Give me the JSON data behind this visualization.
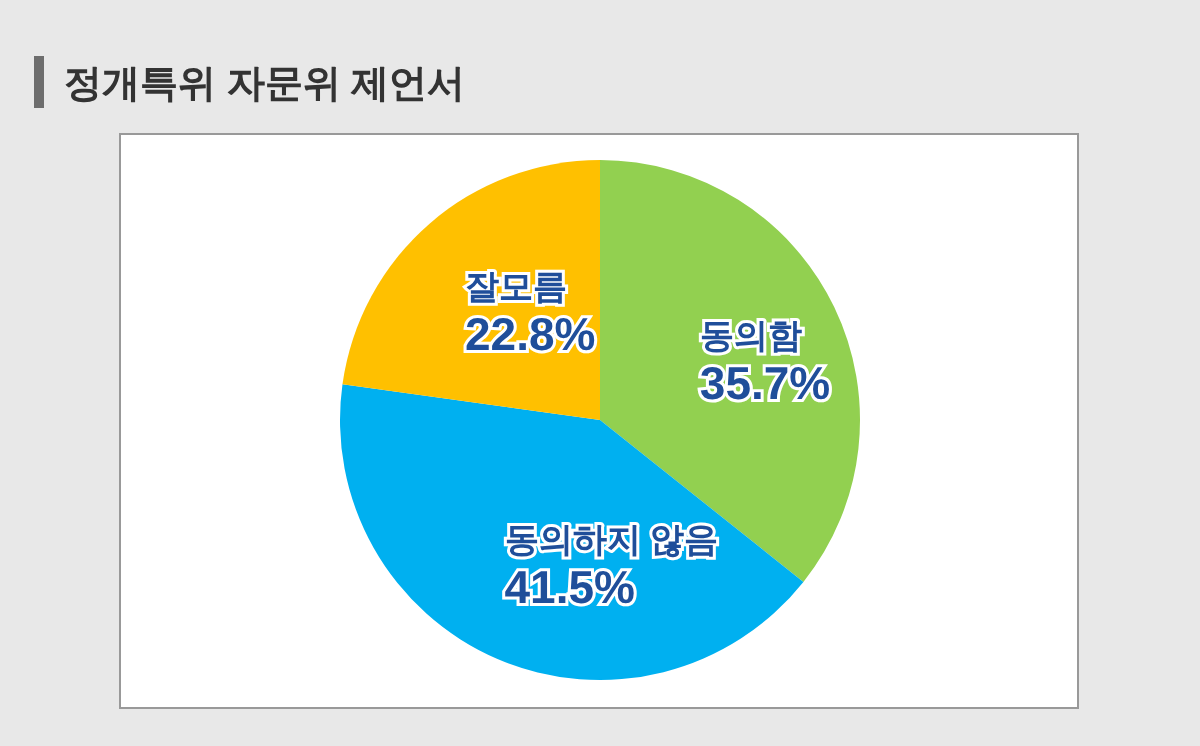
{
  "chart_data": {
    "type": "pie",
    "title": "정개특위 자문위 제언서",
    "categories": [
      "동의함",
      "동의하지 않음",
      "잘모름"
    ],
    "values": [
      35.7,
      41.5,
      22.8
    ],
    "colors": [
      "#92d050",
      "#00b0f0",
      "#ffc000"
    ],
    "value_labels": [
      "35.7%",
      "41.5%",
      "22.8%"
    ]
  }
}
